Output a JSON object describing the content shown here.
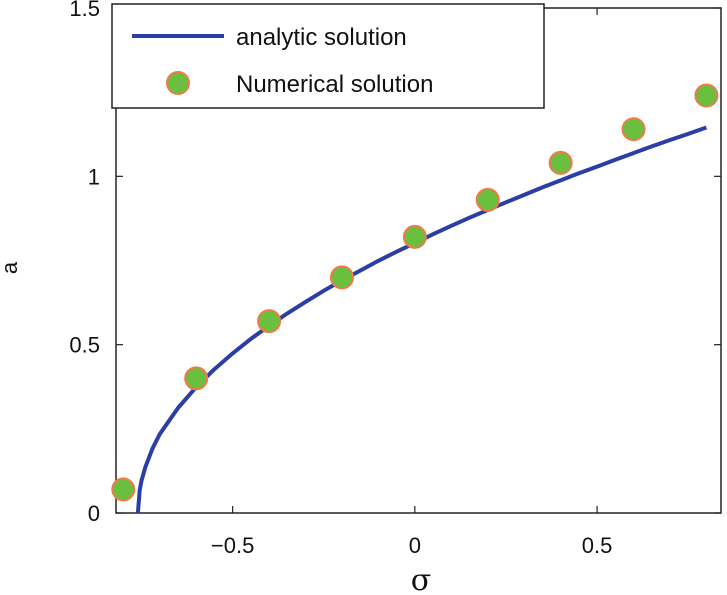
{
  "chart_data": {
    "type": "line",
    "title": "",
    "xlabel": "σ",
    "ylabel": "a",
    "xlim": [
      -0.82,
      0.84
    ],
    "ylim": [
      0,
      1.5
    ],
    "xticks": [
      -0.5,
      0,
      0.5
    ],
    "xtick_labels": [
      "−0.5",
      "0",
      "0.5"
    ],
    "yticks": [
      0,
      0.5,
      1,
      1.5
    ],
    "ytick_labels": [
      "0",
      "0.5",
      "1",
      "1.5"
    ],
    "grid": false,
    "legend_position": "top-left",
    "series": [
      {
        "name": "analytic solution",
        "kind": "line",
        "color": "#2a3ea6",
        "x": [
          -0.76,
          -0.755,
          -0.75,
          -0.74,
          -0.72,
          -0.7,
          -0.65,
          -0.6,
          -0.55,
          -0.5,
          -0.45,
          -0.4,
          -0.35,
          -0.3,
          -0.25,
          -0.2,
          -0.15,
          -0.1,
          -0.05,
          0,
          0.05,
          0.1,
          0.15,
          0.2,
          0.25,
          0.3,
          0.35,
          0.4,
          0.45,
          0.5,
          0.55,
          0.6,
          0.65,
          0.7,
          0.75,
          0.8
        ],
        "y": [
          0.0,
          0.068,
          0.096,
          0.135,
          0.191,
          0.234,
          0.312,
          0.374,
          0.427,
          0.474,
          0.517,
          0.556,
          0.593,
          0.627,
          0.66,
          0.691,
          0.72,
          0.749,
          0.776,
          0.802,
          0.828,
          0.853,
          0.877,
          0.9,
          0.923,
          0.945,
          0.967,
          0.988,
          1.009,
          1.029,
          1.049,
          1.069,
          1.089,
          1.108,
          1.126,
          1.145
        ]
      },
      {
        "name": "Numerical solution",
        "kind": "scatter",
        "color": "#6abf3f",
        "edge_color": "#f07a4a",
        "x": [
          -0.8,
          -0.6,
          -0.4,
          -0.2,
          0.0,
          0.2,
          0.4,
          0.6,
          0.8
        ],
        "y": [
          0.07,
          0.4,
          0.57,
          0.7,
          0.82,
          0.93,
          1.04,
          1.14,
          1.24
        ]
      }
    ]
  }
}
